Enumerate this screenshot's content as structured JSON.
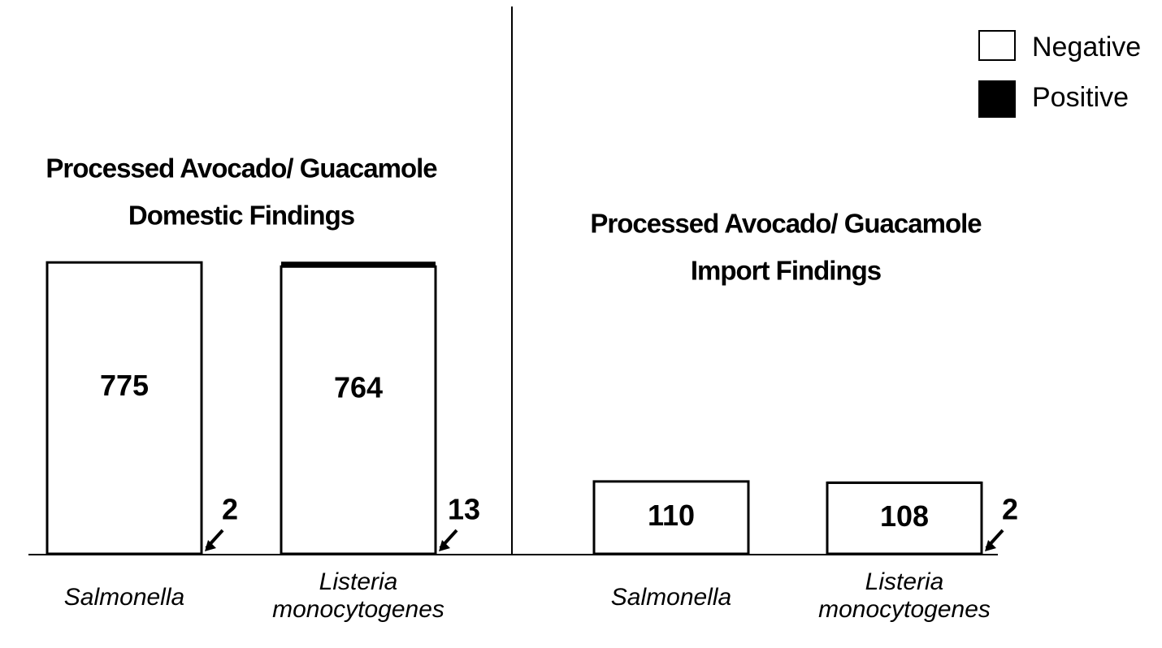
{
  "chart_data": {
    "type": "bar",
    "stacked": true,
    "series": [
      {
        "name": "Negative",
        "color": "#ffffff"
      },
      {
        "name": "Positive",
        "color": "#000000"
      }
    ],
    "panels": [
      {
        "title": [
          "Processed Avocado/ Guacamole",
          "Domestic Findings"
        ],
        "categories": [
          [
            "Salmonella"
          ],
          [
            "Listeria",
            "monocytogenes"
          ]
        ],
        "values": [
          [
            775,
            2
          ],
          [
            764,
            13
          ]
        ]
      },
      {
        "title": [
          "Processed Avocado/ Guacamole",
          "Import Findings"
        ],
        "categories": [
          [
            "Salmonella"
          ],
          [
            "Listeria",
            "monocytogenes"
          ]
        ],
        "values": [
          [
            110,
            0
          ],
          [
            108,
            2
          ]
        ]
      }
    ]
  }
}
